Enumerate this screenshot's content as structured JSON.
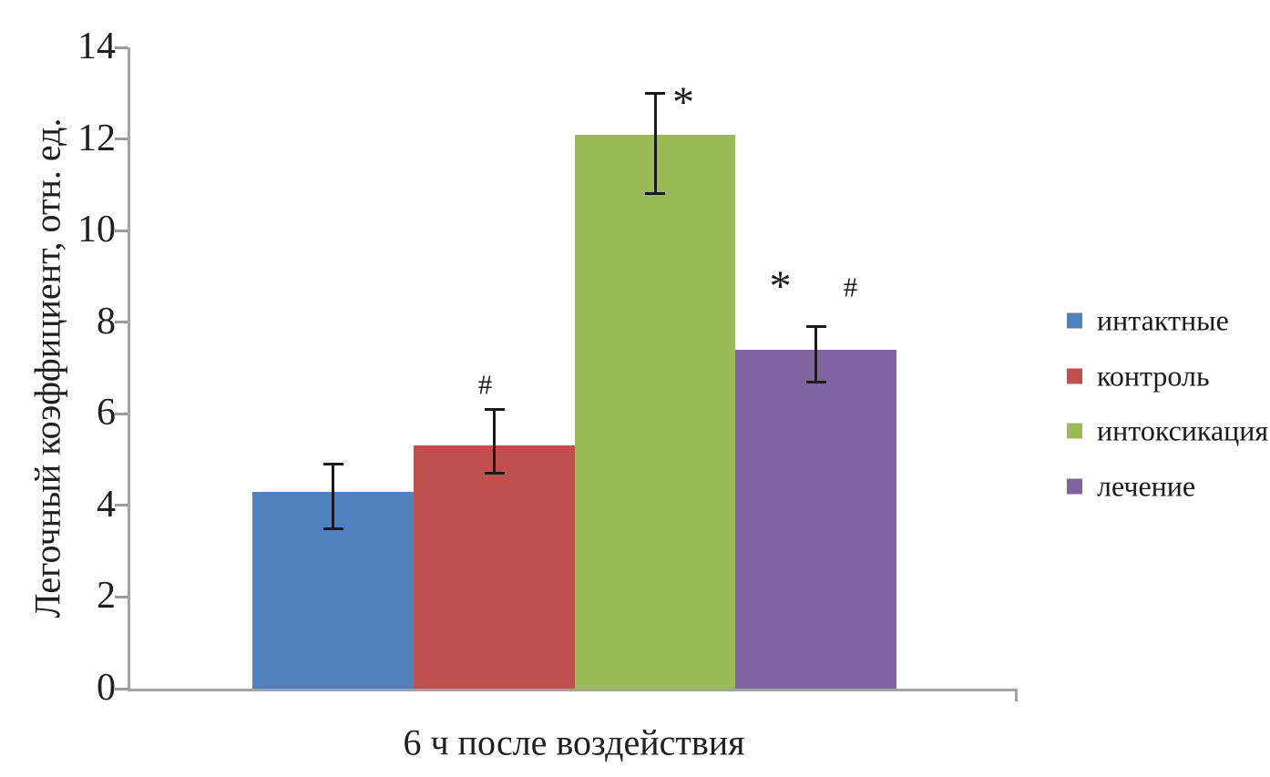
{
  "chart_data": {
    "type": "bar",
    "title": "",
    "xlabel": "6 ч после воздействия",
    "ylabel": "Легочный коэффициент, отн. ед.",
    "categories": [
      "6 ч после воздействия"
    ],
    "ylim": [
      0,
      14
    ],
    "yticks": [
      0,
      2,
      4,
      6,
      8,
      10,
      12,
      14
    ],
    "grid": false,
    "legend_position": "right",
    "axis_color": "#a3a3a3",
    "text_color": "#1f1f1f",
    "series": [
      {
        "name": "интактные",
        "color": "#4f81bd",
        "value": 4.3,
        "error_high": 4.9,
        "error_low": 3.5,
        "markers": []
      },
      {
        "name": "контроль",
        "color": "#c0504d",
        "value": 5.3,
        "error_high": 6.1,
        "error_low": 4.7,
        "markers": [
          {
            "glyph": "#",
            "dx": -10,
            "dy": -30
          }
        ]
      },
      {
        "name": "интоксикация",
        "color": "#9bbb59",
        "value": 12.1,
        "error_high": 13.0,
        "error_low": 10.8,
        "markers": [
          {
            "glyph": "*",
            "dx": 31,
            "dy": 1
          }
        ]
      },
      {
        "name": "лечение",
        "color": "#8064a2",
        "value": 7.4,
        "error_high": 7.9,
        "error_low": 6.7,
        "markers": [
          {
            "glyph": "*",
            "dx": -39,
            "dy": -54
          },
          {
            "glyph": "#",
            "dx": 38,
            "dy": -47
          }
        ]
      }
    ]
  }
}
